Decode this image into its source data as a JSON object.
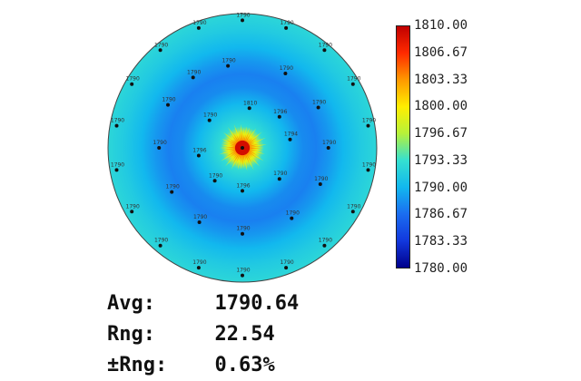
{
  "chart_data": {
    "type": "heatmap",
    "title": "",
    "colorbar": {
      "min": 1780.0,
      "max": 1810.0,
      "ticks": [
        "1810.00",
        "1806.67",
        "1803.33",
        "1800.00",
        "1796.67",
        "1793.33",
        "1790.00",
        "1786.67",
        "1783.33",
        "1780.00"
      ],
      "colors": [
        "#c00000",
        "#ff2a00",
        "#ff9900",
        "#ffee00",
        "#b6f23a",
        "#35e0d0",
        "#12b8ee",
        "#1b6df0",
        "#1238dd",
        "#00008b"
      ]
    },
    "radial_profile": [
      {
        "r": 0.0,
        "value": 1808.5
      },
      {
        "r": 0.05,
        "value": 1807.0
      },
      {
        "r": 0.1,
        "value": 1799.0
      },
      {
        "r": 0.16,
        "value": 1793.0
      },
      {
        "r": 0.24,
        "value": 1791.5
      },
      {
        "r": 0.33,
        "value": 1790.0
      },
      {
        "r": 0.45,
        "value": 1788.0
      },
      {
        "r": 0.55,
        "value": 1787.5
      },
      {
        "r": 0.65,
        "value": 1788.6
      },
      {
        "r": 0.75,
        "value": 1790.0
      },
      {
        "r": 0.88,
        "value": 1791.5
      },
      {
        "r": 1.0,
        "value": 1792.5
      }
    ],
    "points": [
      {
        "angle": 0,
        "r": 0.0,
        "label": ""
      },
      {
        "angle": 80,
        "r": 0.3,
        "label": "1810"
      },
      {
        "angle": 40,
        "r": 0.36,
        "label": "1796"
      },
      {
        "angle": 10,
        "r": 0.36,
        "label": "1794"
      },
      {
        "angle": 320,
        "r": 0.36,
        "label": "1790"
      },
      {
        "angle": 270,
        "r": 0.32,
        "label": "1796"
      },
      {
        "angle": 230,
        "r": 0.32,
        "label": "1790"
      },
      {
        "angle": 190,
        "r": 0.33,
        "label": "1796"
      },
      {
        "angle": 140,
        "r": 0.32,
        "label": "1790"
      },
      {
        "angle": 100,
        "r": 0.62,
        "label": "1790"
      },
      {
        "angle": 60,
        "r": 0.64,
        "label": "1790"
      },
      {
        "angle": 28,
        "r": 0.64,
        "label": "1790"
      },
      {
        "angle": 0,
        "r": 0.64,
        "label": "1790"
      },
      {
        "angle": 335,
        "r": 0.64,
        "label": "1790"
      },
      {
        "angle": 305,
        "r": 0.64,
        "label": "1790"
      },
      {
        "angle": 270,
        "r": 0.64,
        "label": "1790"
      },
      {
        "angle": 240,
        "r": 0.64,
        "label": "1790"
      },
      {
        "angle": 212,
        "r": 0.62,
        "label": "1790"
      },
      {
        "angle": 180,
        "r": 0.62,
        "label": "1790"
      },
      {
        "angle": 150,
        "r": 0.64,
        "label": "1790"
      },
      {
        "angle": 125,
        "r": 0.64,
        "label": "1790"
      },
      {
        "angle": 90,
        "r": 0.95,
        "label": "1790"
      },
      {
        "angle": 70,
        "r": 0.95,
        "label": "1790"
      },
      {
        "angle": 50,
        "r": 0.95,
        "label": "1790"
      },
      {
        "angle": 30,
        "r": 0.95,
        "label": "1790"
      },
      {
        "angle": 10,
        "r": 0.95,
        "label": "1790"
      },
      {
        "angle": 350,
        "r": 0.95,
        "label": "1790"
      },
      {
        "angle": 330,
        "r": 0.95,
        "label": "1790"
      },
      {
        "angle": 310,
        "r": 0.95,
        "label": "1790"
      },
      {
        "angle": 290,
        "r": 0.95,
        "label": "1790"
      },
      {
        "angle": 270,
        "r": 0.95,
        "label": "1790"
      },
      {
        "angle": 250,
        "r": 0.95,
        "label": "1790"
      },
      {
        "angle": 230,
        "r": 0.95,
        "label": "1790"
      },
      {
        "angle": 210,
        "r": 0.95,
        "label": "1790"
      },
      {
        "angle": 190,
        "r": 0.95,
        "label": "1790"
      },
      {
        "angle": 170,
        "r": 0.95,
        "label": "1790"
      },
      {
        "angle": 150,
        "r": 0.95,
        "label": "1790"
      },
      {
        "angle": 130,
        "r": 0.95,
        "label": "1790"
      },
      {
        "angle": 110,
        "r": 0.95,
        "label": "1790"
      }
    ]
  },
  "stats": {
    "avg_label": "Avg:",
    "avg_value": "1790.64",
    "rng_label": "Rng:",
    "rng_value": "22.54",
    "pct_label": "±Rng:",
    "pct_value": "0.63%"
  }
}
